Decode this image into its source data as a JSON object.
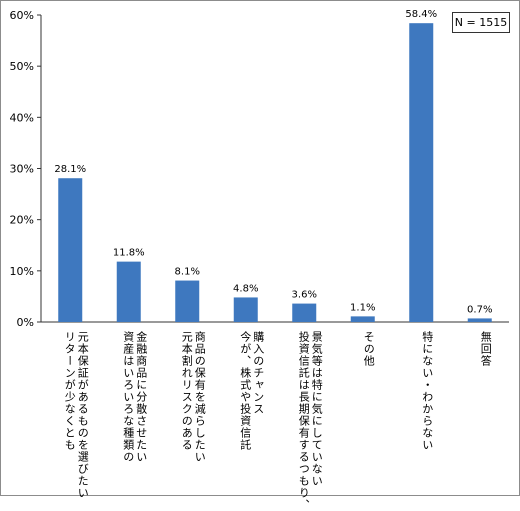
{
  "note": "N = 1515",
  "chart_data": {
    "type": "bar",
    "categories": [
      [
        "元本保証があるものを選びたい",
        "リターンが少なくとも"
      ],
      [
        "金融商品に分散させたい",
        "資産はいろいろな種類の"
      ],
      [
        "商品の保有を減らしたい",
        "元本割れリスクのある"
      ],
      [
        "購入のチャンス",
        "今が、株式や投資信託"
      ],
      [
        "景気等は特に気にしていない",
        "投資信託は長期保有するつもり、"
      ],
      [
        "その他"
      ],
      [
        "特にない・わからない"
      ],
      [
        "無回答"
      ]
    ],
    "values": [
      28.1,
      11.8,
      8.1,
      4.8,
      3.6,
      1.1,
      58.4,
      0.7
    ],
    "value_labels": [
      "28.1%",
      "11.8%",
      "8.1%",
      "4.8%",
      "3.6%",
      "1.1%",
      "58.4%",
      "0.7%"
    ],
    "ylim": [
      0,
      60
    ],
    "yticks": [
      "0%",
      "10%",
      "20%",
      "30%",
      "40%",
      "50%",
      "60%"
    ],
    "bar_color": "#3e78bf",
    "grid": false
  }
}
